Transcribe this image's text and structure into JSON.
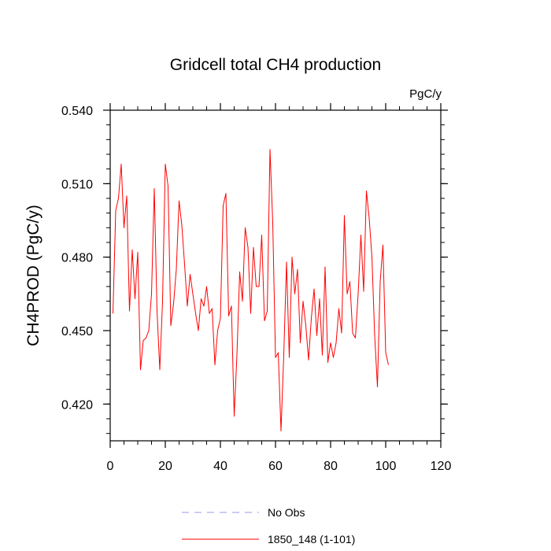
{
  "chart_data": {
    "type": "line",
    "title": "Gridcell total CH4 production",
    "units_label": "PgC/y",
    "ylabel": "CH4PROD  (PgC/y)",
    "xlabel": "",
    "xlim": [
      0,
      120
    ],
    "ylim": [
      0.405,
      0.54
    ],
    "x_ticks": [
      0,
      20,
      40,
      60,
      80,
      100,
      120
    ],
    "x_tick_labels": [
      "0",
      "20",
      "40",
      "60",
      "80",
      "100",
      "120"
    ],
    "x_minor_step": 5,
    "y_ticks": [
      0.42,
      0.45,
      0.48,
      0.51,
      0.54
    ],
    "y_tick_labels": [
      "0.420",
      "0.450",
      "0.480",
      "0.510",
      "0.540"
    ],
    "y_minor_step": 0.006,
    "grid": false,
    "legend_position": "bottom",
    "legend": [
      {
        "label": "No Obs",
        "color": "#9a9aea",
        "dash": true
      },
      {
        "label": "1850_148 (1-101)",
        "color": "#ff0000",
        "dash": false
      }
    ],
    "series": [
      {
        "name": "1850_148 (1-101)",
        "color": "#ff0000",
        "x": [
          1,
          2,
          3,
          4,
          5,
          6,
          7,
          8,
          9,
          10,
          11,
          12,
          13,
          14,
          15,
          16,
          17,
          18,
          19,
          20,
          21,
          22,
          23,
          24,
          25,
          26,
          27,
          28,
          29,
          30,
          31,
          32,
          33,
          34,
          35,
          36,
          37,
          38,
          39,
          40,
          41,
          42,
          43,
          44,
          45,
          46,
          47,
          48,
          49,
          50,
          51,
          52,
          53,
          54,
          55,
          56,
          57,
          58,
          59,
          60,
          61,
          62,
          63,
          64,
          65,
          66,
          67,
          68,
          69,
          70,
          71,
          72,
          73,
          74,
          75,
          76,
          77,
          78,
          79,
          80,
          81,
          82,
          83,
          84,
          85,
          86,
          87,
          88,
          89,
          90,
          91,
          92,
          93,
          94,
          95,
          96,
          97,
          98,
          99,
          100,
          101
        ],
        "y": [
          0.457,
          0.499,
          0.504,
          0.518,
          0.492,
          0.505,
          0.458,
          0.483,
          0.463,
          0.482,
          0.434,
          0.446,
          0.447,
          0.45,
          0.465,
          0.508,
          0.458,
          0.434,
          0.462,
          0.518,
          0.509,
          0.452,
          0.461,
          0.475,
          0.503,
          0.493,
          0.477,
          0.46,
          0.473,
          0.465,
          0.457,
          0.45,
          0.463,
          0.46,
          0.468,
          0.457,
          0.459,
          0.436,
          0.45,
          0.455,
          0.501,
          0.506,
          0.456,
          0.46,
          0.415,
          0.44,
          0.474,
          0.462,
          0.492,
          0.484,
          0.457,
          0.484,
          0.468,
          0.468,
          0.489,
          0.454,
          0.458,
          0.524,
          0.494,
          0.439,
          0.441,
          0.409,
          0.44,
          0.478,
          0.439,
          0.48,
          0.465,
          0.475,
          0.445,
          0.462,
          0.452,
          0.438,
          0.455,
          0.467,
          0.448,
          0.463,
          0.44,
          0.476,
          0.437,
          0.445,
          0.439,
          0.445,
          0.459,
          0.449,
          0.497,
          0.465,
          0.47,
          0.449,
          0.447,
          0.465,
          0.489,
          0.466,
          0.507,
          0.496,
          0.48,
          0.448,
          0.427,
          0.47,
          0.485,
          0.441,
          0.436
        ]
      }
    ]
  }
}
